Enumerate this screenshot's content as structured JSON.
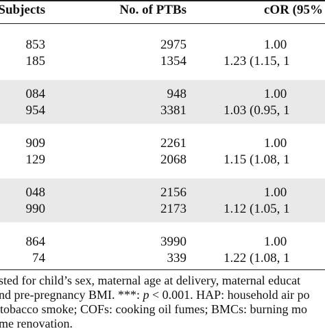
{
  "table": {
    "headers": [
      "Subjects",
      "No. of PTBs",
      "cOR (95%"
    ],
    "rows": [
      {
        "subjects": "853",
        "ptbs": "2975",
        "cor": "1.00"
      },
      {
        "subjects": "185",
        "ptbs": "1354",
        "cor": "1.23 (1.15, 1"
      },
      {
        "subjects": "084",
        "ptbs": "948",
        "cor": "1.00"
      },
      {
        "subjects": "954",
        "ptbs": "3381",
        "cor": "1.03 (0.95, 1"
      },
      {
        "subjects": "909",
        "ptbs": "2261",
        "cor": "1.00"
      },
      {
        "subjects": "129",
        "ptbs": "2068",
        "cor": "1.15 (1.08, 1"
      },
      {
        "subjects": "048",
        "ptbs": "2156",
        "cor": "1.00"
      },
      {
        "subjects": "990",
        "ptbs": "2173",
        "cor": "1.12 (1.05, 1"
      },
      {
        "subjects": "864",
        "ptbs": "3990",
        "cor": "1.00"
      },
      {
        "subjects": "74",
        "ptbs": "339",
        "cor": "1.22 (1.08, 1"
      }
    ]
  },
  "footnote": {
    "line1": "sted for child’s sex, maternal age at delivery, maternal educat",
    "line2_a": "nd pre-pregnancy BMI. ***: ",
    "line2_p": "p",
    "line2_b": " < 0.001. HAP: household air po",
    "line3": "tobacco smoke; COFs: cooking oil fumes; BMCs: burning mo",
    "line4": "me renovation."
  }
}
